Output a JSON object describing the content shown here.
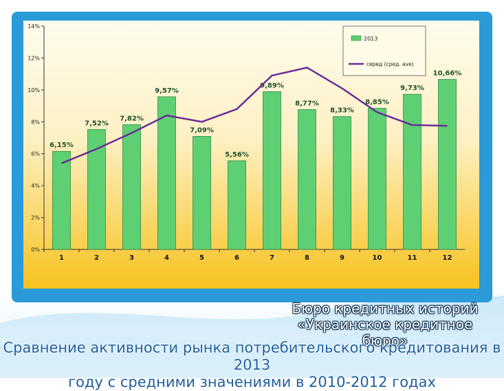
{
  "slide": {
    "source_line1": "Бюро кредитных историй",
    "source_line2": "«Украинское кредитное бюро»",
    "title_line1": "Сравнение активности рынка потребительского кредитования в 2013",
    "title_line2": "году с средними значениями в 2010-2012 годах",
    "colors": {
      "frame_blue": "#2a9ad8",
      "chart_bg_top": "#fffcee",
      "chart_bg_bottom": "#f7c21e",
      "bar_fill": "#5fcf74",
      "line_color": "#6a2a9a",
      "title_color": "#1f5fa0"
    }
  },
  "chart_data": {
    "type": "bar",
    "categories": [
      "1",
      "2",
      "3",
      "4",
      "5",
      "6",
      "7",
      "8",
      "9",
      "10",
      "11",
      "12"
    ],
    "series": [
      {
        "name": "2013",
        "type": "bar",
        "values": [
          6.15,
          7.52,
          7.82,
          9.57,
          7.09,
          5.56,
          9.89,
          8.77,
          8.33,
          8.85,
          9.73,
          10.66
        ],
        "labels": [
          "6,15%",
          "7,52%",
          "7,82%",
          "9,57%",
          "7,09%",
          "5,56%",
          "9,89%",
          "8,77%",
          "8,33%",
          "8,85%",
          "9,73%",
          "10,66%"
        ]
      },
      {
        "name": "серед (сред. ave)",
        "type": "line",
        "values": [
          5.4,
          6.3,
          7.3,
          8.4,
          8.0,
          8.8,
          10.9,
          11.4,
          10.1,
          8.6,
          7.8,
          7.75
        ]
      }
    ],
    "y_ticks": [
      "0%",
      "2%",
      "4%",
      "6%",
      "8%",
      "10%",
      "12%",
      "14%"
    ],
    "ylim": [
      0,
      14
    ],
    "grid": false,
    "legend": "top-right",
    "title": "",
    "xlabel": "",
    "ylabel": ""
  }
}
